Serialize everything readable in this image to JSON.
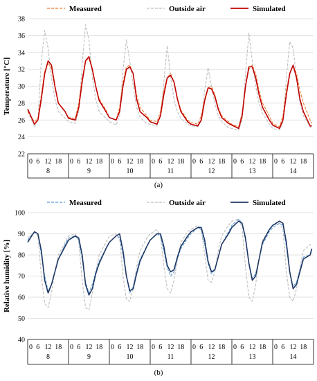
{
  "captions": [
    "(a)",
    "(b)"
  ],
  "chart_data": [
    {
      "type": "line",
      "ylabel": "Temperature [°C]",
      "ylim": [
        22,
        38
      ],
      "y_ticks": [
        "22",
        "24",
        "26",
        "28",
        "30",
        "32",
        "34",
        "36",
        "38"
      ],
      "hour_ticks": [
        "0",
        "6",
        "12",
        "18"
      ],
      "days": [
        "8",
        "9",
        "10",
        "11",
        "12",
        "13",
        "14"
      ],
      "legend_position": "top",
      "x_unit": "hour",
      "series": [
        {
          "name": "Measured",
          "color": "#ED7D31",
          "style": "dashed",
          "x": [
            0,
            4,
            6,
            8,
            10,
            12,
            14,
            16,
            18,
            22,
            24,
            28,
            30,
            32,
            34,
            36,
            38,
            40,
            42,
            46,
            48,
            52,
            54,
            56,
            58,
            60,
            62,
            64,
            66,
            70,
            72,
            76,
            78,
            80,
            82,
            84,
            86,
            88,
            90,
            94,
            96,
            100,
            102,
            104,
            106,
            108,
            110,
            112,
            114,
            118,
            120,
            124,
            126,
            128,
            130,
            132,
            134,
            136,
            138,
            142,
            144,
            148,
            150,
            152,
            154,
            156,
            158,
            160,
            162,
            166,
            167
          ],
          "y": [
            27.0,
            25.8,
            26.2,
            29.0,
            31.8,
            32.8,
            32.0,
            30.0,
            28.0,
            27.0,
            26.3,
            26.2,
            28.0,
            31.0,
            33.0,
            33.3,
            32.0,
            30.0,
            28.5,
            27.2,
            26.3,
            26.0,
            27.5,
            30.5,
            32.3,
            32.5,
            31.5,
            29.0,
            27.5,
            26.5,
            26.0,
            25.8,
            27.0,
            29.5,
            31.0,
            31.5,
            30.5,
            28.5,
            27.2,
            26.0,
            25.7,
            25.5,
            26.5,
            28.5,
            29.8,
            30.0,
            29.0,
            27.5,
            26.5,
            25.8,
            25.5,
            25.2,
            26.8,
            30.0,
            32.0,
            32.5,
            31.5,
            29.5,
            28.0,
            26.5,
            25.6,
            25.2,
            26.5,
            29.5,
            31.5,
            32.5,
            31.5,
            29.5,
            28.0,
            26.0,
            25.6
          ]
        },
        {
          "name": "Outside air",
          "color": "#BFBFBF",
          "style": "dashed",
          "x": [
            0,
            4,
            6,
            8,
            10,
            12,
            14,
            16,
            18,
            22,
            24,
            28,
            30,
            32,
            34,
            36,
            38,
            40,
            42,
            46,
            48,
            52,
            54,
            56,
            58,
            60,
            62,
            64,
            66,
            70,
            72,
            76,
            78,
            80,
            82,
            84,
            86,
            88,
            90,
            94,
            96,
            100,
            102,
            104,
            106,
            108,
            110,
            112,
            114,
            118,
            120,
            124,
            126,
            128,
            130,
            132,
            134,
            136,
            138,
            142,
            144,
            148,
            150,
            152,
            154,
            156,
            158,
            160,
            162,
            166,
            167
          ],
          "y": [
            27.0,
            25.2,
            26.0,
            33.0,
            36.6,
            34.5,
            31.0,
            28.5,
            27.0,
            26.2,
            25.8,
            25.6,
            27.0,
            32.5,
            37.3,
            35.5,
            31.0,
            28.5,
            27.0,
            26.2,
            25.8,
            25.4,
            26.5,
            32.0,
            35.5,
            33.0,
            30.0,
            27.5,
            26.3,
            25.6,
            25.5,
            25.3,
            26.5,
            30.5,
            34.8,
            31.0,
            28.5,
            27.0,
            26.2,
            25.5,
            25.3,
            25.2,
            26.0,
            29.5,
            32.2,
            30.0,
            28.0,
            26.5,
            25.8,
            25.1,
            25.0,
            24.8,
            26.0,
            31.5,
            36.3,
            33.0,
            30.0,
            28.0,
            26.8,
            25.5,
            25.0,
            24.8,
            25.8,
            31.0,
            35.3,
            34.5,
            31.0,
            28.0,
            26.5,
            25.2,
            25.0
          ]
        },
        {
          "name": "Simulated",
          "color": "#C00000",
          "style": "solid",
          "x": [
            0,
            4,
            6,
            8,
            10,
            12,
            14,
            16,
            18,
            22,
            24,
            28,
            30,
            32,
            34,
            36,
            38,
            40,
            42,
            46,
            48,
            52,
            54,
            56,
            58,
            60,
            62,
            64,
            66,
            70,
            72,
            76,
            78,
            80,
            82,
            84,
            86,
            88,
            90,
            94,
            96,
            100,
            102,
            104,
            106,
            108,
            110,
            112,
            114,
            118,
            120,
            124,
            126,
            128,
            130,
            132,
            134,
            136,
            138,
            142,
            144,
            148,
            150,
            152,
            154,
            156,
            158,
            160,
            162,
            166,
            167
          ],
          "y": [
            27.3,
            25.5,
            26.0,
            28.5,
            31.5,
            33.0,
            32.5,
            30.0,
            28.0,
            27.0,
            26.2,
            26.0,
            27.5,
            30.5,
            33.0,
            33.5,
            32.0,
            30.0,
            28.3,
            27.0,
            26.3,
            26.0,
            27.0,
            30.0,
            32.0,
            32.3,
            31.5,
            28.5,
            27.0,
            26.3,
            25.8,
            25.5,
            26.5,
            29.0,
            31.0,
            31.3,
            30.5,
            28.5,
            27.0,
            25.8,
            25.5,
            25.3,
            26.0,
            28.3,
            29.8,
            29.7,
            28.8,
            27.3,
            26.3,
            25.6,
            25.4,
            25.0,
            26.5,
            30.0,
            32.3,
            32.3,
            31.0,
            29.0,
            27.5,
            26.0,
            25.4,
            25.0,
            26.0,
            29.0,
            31.5,
            32.5,
            31.0,
            28.5,
            27.0,
            25.3,
            25.3
          ]
        }
      ]
    },
    {
      "type": "line",
      "ylabel": "Relative humidity [%]",
      "ylim": [
        40,
        100
      ],
      "y_ticks": [
        "40",
        "50",
        "60",
        "70",
        "80",
        "90",
        "100"
      ],
      "hour_ticks": [
        "0",
        "6",
        "12",
        "18"
      ],
      "days": [
        "8",
        "9",
        "10",
        "11",
        "12",
        "13",
        "14"
      ],
      "legend_position": "top",
      "x_unit": "hour",
      "series": [
        {
          "name": "Measured",
          "color": "#5B9BD5",
          "style": "dashed",
          "x": [
            0,
            4,
            6,
            8,
            10,
            12,
            14,
            16,
            18,
            22,
            24,
            28,
            30,
            32,
            34,
            36,
            38,
            40,
            42,
            46,
            48,
            52,
            54,
            56,
            58,
            60,
            62,
            64,
            66,
            70,
            72,
            76,
            78,
            80,
            82,
            84,
            86,
            88,
            90,
            94,
            96,
            100,
            102,
            104,
            106,
            108,
            110,
            112,
            114,
            118,
            120,
            124,
            126,
            128,
            130,
            132,
            134,
            136,
            138,
            142,
            144,
            148,
            150,
            152,
            154,
            156,
            158,
            160,
            162,
            166,
            167
          ],
          "y": [
            87,
            91,
            90,
            80,
            70,
            63,
            66,
            72,
            78,
            85,
            88,
            89,
            87,
            78,
            67,
            62,
            66,
            72,
            77,
            83,
            86,
            89,
            88,
            80,
            70,
            62,
            65,
            72,
            78,
            84,
            87,
            90,
            89,
            82,
            74,
            70,
            72,
            78,
            83,
            88,
            90,
            93,
            92,
            85,
            76,
            71,
            73,
            79,
            85,
            91,
            94,
            97,
            95,
            87,
            76,
            69,
            71,
            78,
            85,
            91,
            93,
            95,
            94,
            84,
            72,
            65,
            67,
            73,
            79,
            80,
            82
          ]
        },
        {
          "name": "Outside air",
          "color": "#BFBFBF",
          "style": "dashed",
          "x": [
            0,
            4,
            6,
            8,
            10,
            12,
            14,
            16,
            18,
            22,
            24,
            28,
            30,
            32,
            34,
            36,
            38,
            40,
            42,
            46,
            48,
            52,
            54,
            56,
            58,
            60,
            62,
            64,
            66,
            70,
            72,
            76,
            78,
            80,
            82,
            84,
            86,
            88,
            90,
            94,
            96,
            100,
            102,
            104,
            106,
            108,
            110,
            112,
            114,
            118,
            120,
            124,
            126,
            128,
            130,
            132,
            134,
            136,
            138,
            142,
            144,
            148,
            150,
            152,
            154,
            156,
            158,
            160,
            162,
            166,
            167
          ],
          "y": [
            88,
            91,
            89,
            70,
            57,
            55,
            62,
            72,
            80,
            86,
            89,
            90,
            86,
            68,
            55,
            54,
            62,
            72,
            80,
            86,
            89,
            90,
            88,
            70,
            59,
            58,
            64,
            74,
            82,
            88,
            90,
            92,
            89,
            75,
            64,
            62,
            68,
            78,
            86,
            91,
            92,
            94,
            92,
            80,
            68,
            67,
            72,
            82,
            89,
            94,
            96,
            97,
            93,
            74,
            60,
            58,
            66,
            78,
            87,
            92,
            94,
            95,
            92,
            72,
            60,
            58,
            64,
            74,
            82,
            85,
            84
          ]
        },
        {
          "name": "Simulated",
          "color": "#1F3864",
          "style": "solid",
          "x": [
            0,
            4,
            6,
            8,
            10,
            12,
            14,
            16,
            18,
            22,
            24,
            28,
            30,
            32,
            34,
            36,
            38,
            40,
            42,
            46,
            48,
            52,
            54,
            56,
            58,
            60,
            62,
            64,
            66,
            70,
            72,
            76,
            78,
            80,
            82,
            84,
            86,
            88,
            90,
            94,
            96,
            100,
            102,
            104,
            106,
            108,
            110,
            112,
            114,
            118,
            120,
            124,
            126,
            128,
            130,
            132,
            134,
            136,
            138,
            142,
            144,
            148,
            150,
            152,
            154,
            156,
            158,
            160,
            162,
            166,
            167
          ],
          "y": [
            86,
            91,
            90,
            82,
            68,
            62,
            66,
            72,
            78,
            84,
            87,
            89,
            88,
            80,
            66,
            61,
            64,
            71,
            76,
            83,
            86,
            89,
            90,
            82,
            70,
            63,
            64,
            71,
            77,
            84,
            87,
            90,
            90,
            84,
            75,
            72,
            73,
            79,
            84,
            89,
            91,
            93,
            93,
            87,
            77,
            72,
            73,
            79,
            85,
            90,
            93,
            96,
            95,
            88,
            76,
            68,
            70,
            78,
            86,
            92,
            94,
            96,
            95,
            86,
            72,
            64,
            66,
            72,
            78,
            80,
            83
          ]
        }
      ]
    }
  ]
}
